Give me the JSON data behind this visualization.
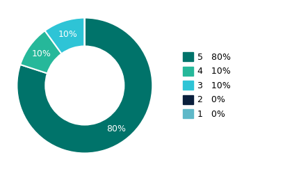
{
  "slices": [
    80,
    10,
    10,
    0.0001,
    0.0001
  ],
  "labels": [
    "5",
    "4",
    "3",
    "2",
    "1"
  ],
  "percentages": [
    "80%",
    "10%",
    "10%",
    "0%",
    "0%"
  ],
  "colors": [
    "#00736a",
    "#26b89a",
    "#2ec4d6",
    "#0a1f3c",
    "#5eb8c8"
  ],
  "wedge_text_color": "#ffffff",
  "background_color": "#ffffff",
  "donut_width": 0.42,
  "legend_labels": [
    "5",
    "4",
    "3",
    "2",
    "1"
  ],
  "legend_pcts": [
    "80%",
    "10%",
    "10%",
    "0%",
    "0%"
  ]
}
